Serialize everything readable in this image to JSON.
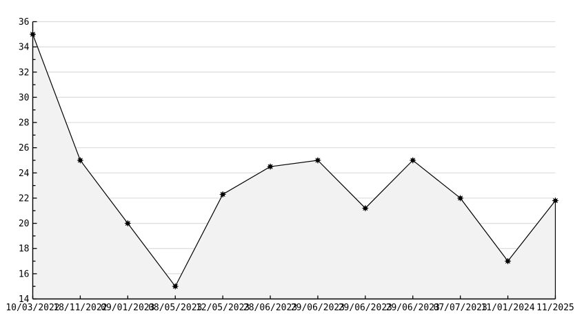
{
  "chart_data": {
    "type": "area",
    "title": "",
    "xlabel": "",
    "ylabel": "",
    "categories": [
      "10/03/2022",
      "18/11/2022",
      "09/01/2023",
      "08/05/2023",
      "12/05/2023",
      "28/06/2023",
      "29/06/2023",
      "29/06/2023",
      "29/06/2023",
      "07/07/2023",
      "11/01/2024",
      "11/2025"
    ],
    "values": [
      35,
      25,
      20,
      15,
      22.3,
      24.5,
      25,
      21.2,
      25,
      22,
      17,
      21.8
    ],
    "ylim": [
      14,
      36
    ],
    "y_major_step": 2,
    "y_minor_step": 1,
    "y_tick_labels": [
      "14",
      "16",
      "18",
      "20",
      "22",
      "24",
      "26",
      "28",
      "30",
      "32",
      "34",
      "36"
    ],
    "grid": "horizontal-major",
    "legend": "none",
    "marker": "asterisk-dot",
    "colors": {
      "background": "#ffffff",
      "line": "#000000",
      "marker": "#000000",
      "fill": "#f2f2f2",
      "gridline": "#dcdcdc",
      "axis": "#000000",
      "text": "#000000"
    }
  }
}
